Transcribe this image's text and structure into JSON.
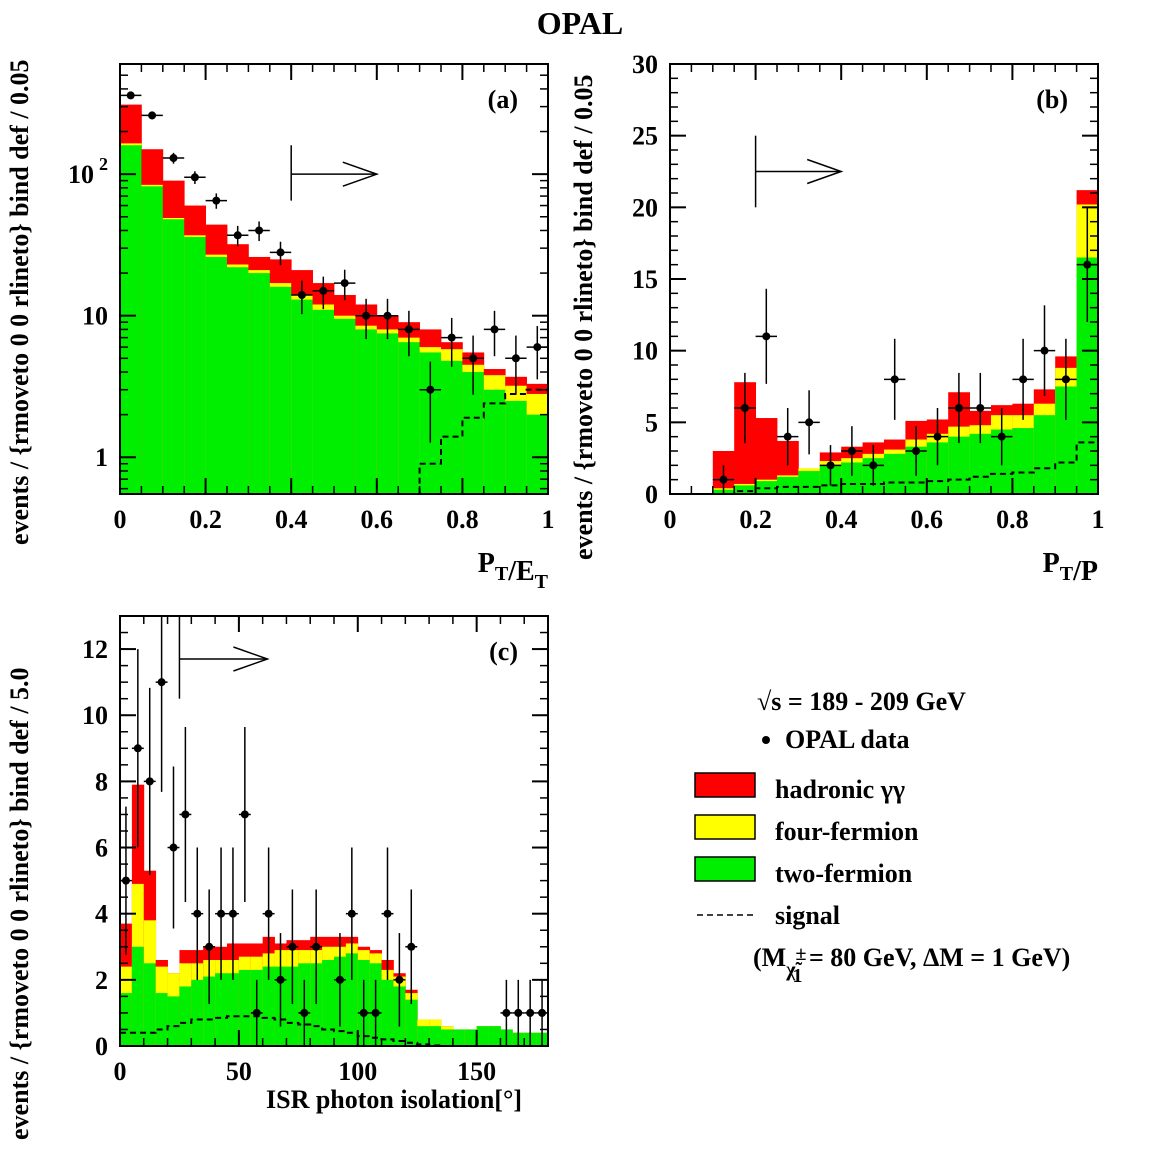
{
  "page": {
    "title": "OPAL"
  },
  "colors": {
    "hadronic": "#ff0000",
    "fourfermion": "#ffff00",
    "twofermion": "#00ee00",
    "data": "#000000",
    "signal": "#000000"
  },
  "legend": {
    "energy": "√s = 189 - 209 GeV",
    "items": [
      {
        "marker": "point",
        "label": "OPAL data"
      },
      {
        "marker": "box",
        "color": "#ff0000",
        "label": "hadronic γγ"
      },
      {
        "marker": "box",
        "color": "#ffff00",
        "label": "four-fermion"
      },
      {
        "marker": "box",
        "color": "#00ee00",
        "label": "two-fermion"
      },
      {
        "marker": "dash",
        "label": "signal"
      }
    ],
    "signal_params": {
      "open": "(M",
      "sub": "χ̃",
      "sup": "±",
      "subidx": "1",
      "rest": " = 80 GeV, ΔM = 1 GeV)"
    }
  },
  "chart_data": [
    {
      "panel": "(a)",
      "type": "area",
      "log_y": true,
      "xlabel": "P_T/E_T",
      "xlabel_main": "P",
      "xlabel_sub1": "T",
      "xlabel_mid": "/E",
      "xlabel_sub2": "T",
      "ylabel": "events / {rmoveto 0 0 rlineto} bind def / 0.05",
      "xlim": [
        0,
        1
      ],
      "ylim": [
        0.55,
        600
      ],
      "x_ticks": [
        "0",
        "0.2",
        "0.4",
        "0.6",
        "0.8",
        "1"
      ],
      "y_ticks": [
        {
          "v": 1,
          "label": "1"
        },
        {
          "v": 10,
          "label": "10"
        },
        {
          "v": 100,
          "label": "10",
          "sup": "2"
        }
      ],
      "cut_arrow": {
        "x_start": 0.4,
        "x_end": 0.6,
        "y": 100,
        "bar_lo": 65,
        "bar_hi": 160
      },
      "bin_width": 0.05,
      "two_fermion": [
        160,
        82,
        48,
        36,
        26,
        22,
        20,
        16,
        13,
        11,
        9.5,
        8,
        7.5,
        6.5,
        5.5,
        4.8,
        4,
        3,
        2.5,
        2
      ],
      "four_fermion": [
        165,
        84,
        49,
        37,
        27,
        23,
        21,
        17,
        14,
        12,
        10,
        8.5,
        8,
        7,
        6,
        5.8,
        4.5,
        3.8,
        3.2,
        2.8
      ],
      "hadronic_total": [
        310,
        150,
        90,
        60,
        44,
        32,
        26,
        25,
        21,
        17,
        14,
        12,
        10,
        9,
        8,
        6.5,
        5.5,
        4.2,
        3.7,
        3.3
      ],
      "signal": [
        0,
        0,
        0,
        0,
        0,
        0,
        0,
        0,
        0,
        0,
        0,
        0,
        0,
        0,
        0.9,
        1.4,
        1.9,
        2.4,
        2.8,
        3.0
      ],
      "data_x": [
        0.025,
        0.075,
        0.125,
        0.175,
        0.225,
        0.275,
        0.325,
        0.375,
        0.425,
        0.475,
        0.525,
        0.575,
        0.625,
        0.675,
        0.725,
        0.775,
        0.825,
        0.875,
        0.925,
        0.975
      ],
      "data_y": [
        360,
        260,
        130,
        95,
        65,
        37,
        40,
        28,
        14,
        15,
        17,
        10,
        10,
        8,
        3,
        7,
        5,
        8,
        5,
        6
      ]
    },
    {
      "panel": "(b)",
      "type": "area",
      "log_y": false,
      "xlabel": "P_T/P",
      "xlabel_main": "P",
      "xlabel_sub1": "T",
      "xlabel_mid": "/P",
      "xlabel_sub2": "",
      "ylabel": "events / {rmoveto 0 0 rlineto} bind def / 0.05",
      "xlim": [
        0,
        1
      ],
      "ylim": [
        0,
        30
      ],
      "x_ticks": [
        "0",
        "0.2",
        "0.4",
        "0.6",
        "0.8",
        "1"
      ],
      "y_ticks": [
        {
          "v": 0,
          "label": "0"
        },
        {
          "v": 5,
          "label": "5"
        },
        {
          "v": 10,
          "label": "10"
        },
        {
          "v": 15,
          "label": "15"
        },
        {
          "v": 20,
          "label": "20"
        },
        {
          "v": 25,
          "label": "25"
        },
        {
          "v": 30,
          "label": "30"
        }
      ],
      "cut_arrow": {
        "x_start": 0.2,
        "x_end": 0.4,
        "y": 22.5,
        "bar_lo": 20,
        "bar_hi": 25
      },
      "bin_width": 0.05,
      "two_fermion": [
        0,
        0,
        0.3,
        0.6,
        0.9,
        1.2,
        1.6,
        2.0,
        2.2,
        2.5,
        2.8,
        3.3,
        3.6,
        4.0,
        4.2,
        4.5,
        4.6,
        5.5,
        7.5,
        16.5
      ],
      "four_fermion": [
        0,
        0,
        0.4,
        0.7,
        1.0,
        1.3,
        1.8,
        2.3,
        2.5,
        2.8,
        3.1,
        3.8,
        4.2,
        4.7,
        4.8,
        5.5,
        5.5,
        6.3,
        8.8,
        20.2
      ],
      "hadronic_total": [
        0,
        0,
        3.0,
        7.8,
        5.3,
        3.7,
        1.5,
        2.9,
        3.3,
        3.6,
        3.8,
        5.1,
        5.2,
        7.1,
        5.8,
        6.2,
        6.3,
        7.3,
        9.6,
        21.2
      ],
      "signal": [
        0,
        0,
        0,
        0.2,
        0.4,
        0.5,
        0.5,
        0.6,
        0.7,
        0.7,
        0.8,
        0.8,
        0.9,
        1.0,
        1.2,
        1.4,
        1.5,
        1.8,
        2.2,
        3.6
      ],
      "data_x": [
        0.125,
        0.175,
        0.225,
        0.275,
        0.325,
        0.375,
        0.425,
        0.475,
        0.525,
        0.575,
        0.625,
        0.675,
        0.725,
        0.775,
        0.825,
        0.875,
        0.925,
        0.975
      ],
      "data_y": [
        1,
        6,
        11,
        4,
        5,
        2,
        3,
        2,
        8,
        3,
        4,
        6,
        6,
        4,
        8,
        10,
        8,
        16
      ]
    },
    {
      "panel": "(c)",
      "type": "area",
      "log_y": false,
      "xlabel": "ISR photon isolation[°]",
      "ylabel": "events / {rmoveto 0 0 rlineto} bind def / 5.0",
      "xlim": [
        0,
        180
      ],
      "ylim": [
        0,
        13
      ],
      "x_ticks": [
        "0",
        "50",
        "100",
        "150"
      ],
      "y_ticks": [
        {
          "v": 0,
          "label": "0"
        },
        {
          "v": 2,
          "label": "2"
        },
        {
          "v": 4,
          "label": "4"
        },
        {
          "v": 6,
          "label": "6"
        },
        {
          "v": 8,
          "label": "8"
        },
        {
          "v": 10,
          "label": "10"
        },
        {
          "v": 12,
          "label": "12"
        }
      ],
      "cut_arrow": {
        "x_start": 25,
        "x_end": 62,
        "y": 11.7,
        "bar_lo": 10.5,
        "bar_hi": 13
      },
      "bin_width": 5,
      "two_fermion": [
        1.6,
        3.0,
        2.5,
        1.6,
        1.5,
        1.8,
        2.0,
        2.1,
        2.2,
        2.2,
        2.3,
        2.3,
        2.4,
        2.4,
        2.4,
        2.5,
        2.5,
        2.6,
        2.7,
        2.8,
        2.6,
        2.5,
        2.0,
        1.8,
        1.4,
        0.6,
        0.6,
        0.5,
        0.5,
        0.5,
        0.6,
        0.6,
        0.5,
        0.4,
        0.4,
        0.4
      ],
      "four_fermion": [
        2.4,
        4.9,
        3.8,
        2.4,
        2.2,
        2.5,
        2.5,
        2.6,
        2.6,
        2.6,
        2.7,
        2.7,
        2.8,
        2.9,
        2.9,
        2.9,
        2.9,
        3.0,
        3.0,
        3.1,
        2.9,
        2.8,
        2.3,
        2.1,
        1.6,
        0.8,
        0.8,
        0.6,
        0.5,
        0.5,
        0.6,
        0.6,
        0.5,
        0.4,
        0.4,
        0.4
      ],
      "hadronic_total": [
        3.7,
        7.9,
        5.3,
        2.6,
        2.2,
        2.9,
        2.9,
        3.0,
        3.0,
        3.1,
        3.1,
        3.1,
        3.3,
        3.1,
        3.2,
        3.2,
        3.3,
        3.3,
        3.3,
        3.3,
        3.0,
        2.9,
        2.6,
        2.2,
        1.7,
        0.8,
        0.8,
        0.6,
        0.5,
        0.5,
        0.6,
        0.6,
        0.5,
        0.4,
        0.4,
        0.4
      ],
      "signal": [
        0.4,
        0.4,
        0.4,
        0.5,
        0.6,
        0.7,
        0.8,
        0.8,
        0.85,
        0.9,
        0.9,
        0.9,
        0.85,
        0.8,
        0.7,
        0.65,
        0.6,
        0.5,
        0.45,
        0.4,
        0.3,
        0.25,
        0.2,
        0.15,
        0.1,
        0.05,
        0.02,
        0,
        0,
        0,
        0,
        0,
        0,
        0,
        0,
        0
      ],
      "data_x": [
        2.5,
        7.5,
        12.5,
        17.5,
        22.5,
        27.5,
        32.5,
        37.5,
        42.5,
        47.5,
        52.5,
        57.5,
        62.5,
        67.5,
        72.5,
        77.5,
        82.5,
        92.5,
        97.5,
        102.5,
        107.5,
        112.5,
        117.5,
        122.5,
        162.5,
        167.5,
        172.5,
        177.5
      ],
      "data_y": [
        5,
        9,
        8,
        11,
        6,
        7,
        4,
        3,
        4,
        4,
        7,
        1,
        4,
        2,
        3,
        1,
        3,
        2,
        4,
        1,
        1,
        4,
        2,
        3,
        1,
        1,
        1,
        1
      ]
    }
  ]
}
